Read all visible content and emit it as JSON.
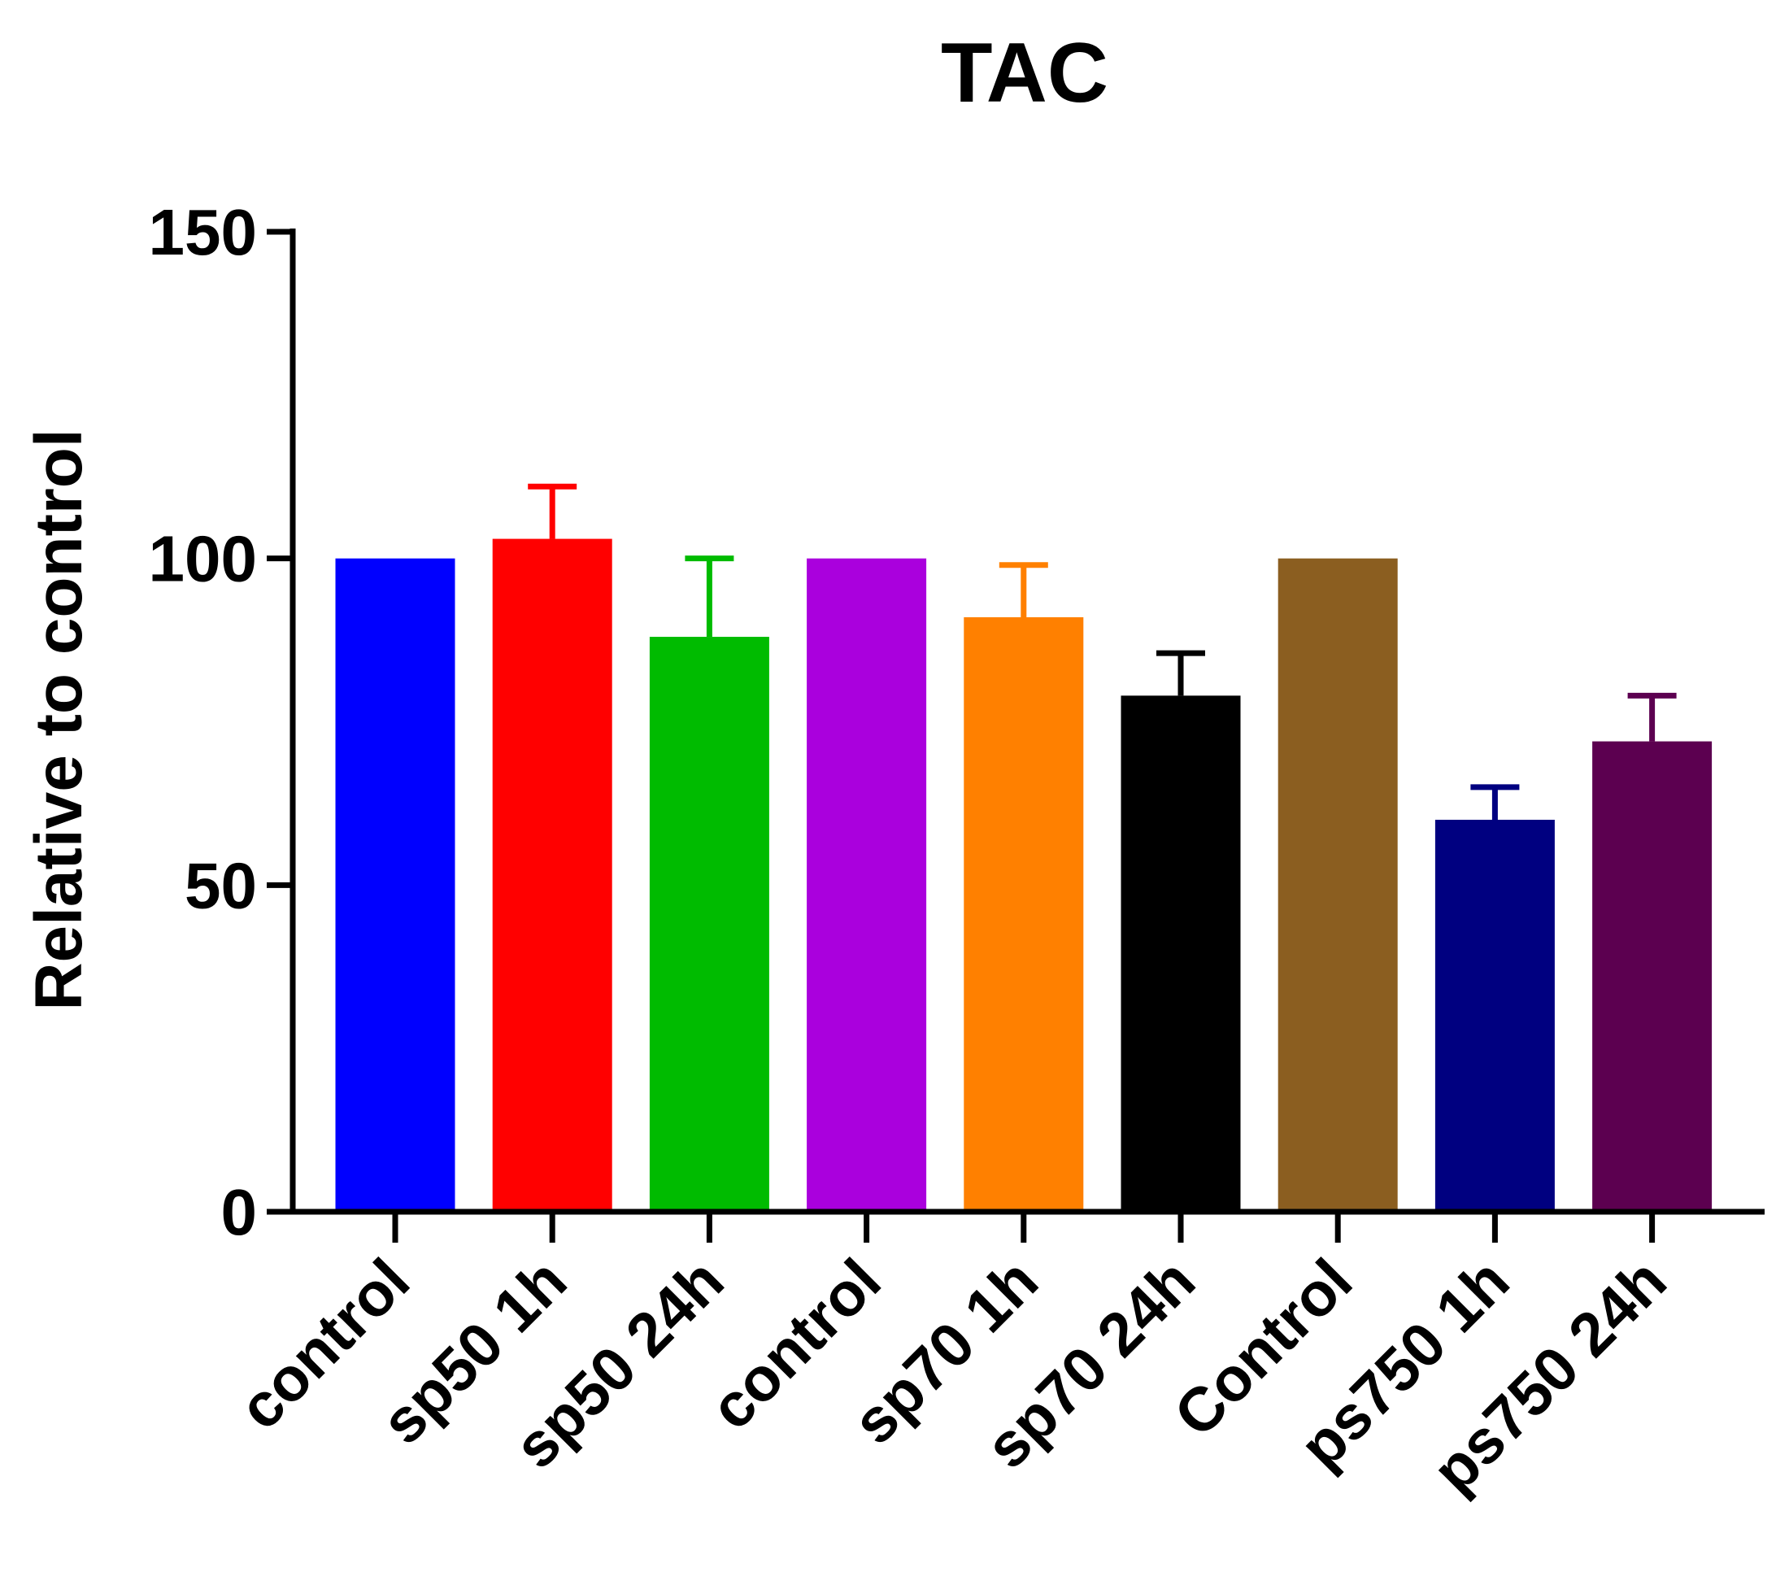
{
  "chart_data": {
    "type": "bar",
    "title": "TAC",
    "xlabel": "",
    "ylabel": "Relative to control",
    "ylim": [
      0,
      150
    ],
    "yticks": [
      0,
      50,
      100,
      150
    ],
    "grid": false,
    "legend": "none",
    "categories": [
      "control",
      "sp50 1h",
      "sp50 24h",
      "control",
      "sp70 1h",
      "sp70 24h",
      "Control",
      "ps750 1h",
      "ps750 24h"
    ],
    "values": [
      100,
      103,
      88,
      100,
      91,
      79,
      100,
      60,
      72
    ],
    "errors": [
      0,
      8,
      12,
      0,
      8,
      6.5,
      0,
      5,
      7
    ],
    "colors": [
      "#0000FF",
      "#FF0000",
      "#00BB00",
      "#AA00DD",
      "#FF8000",
      "#000000",
      "#8B5E20",
      "#000080",
      "#5C0050"
    ]
  }
}
